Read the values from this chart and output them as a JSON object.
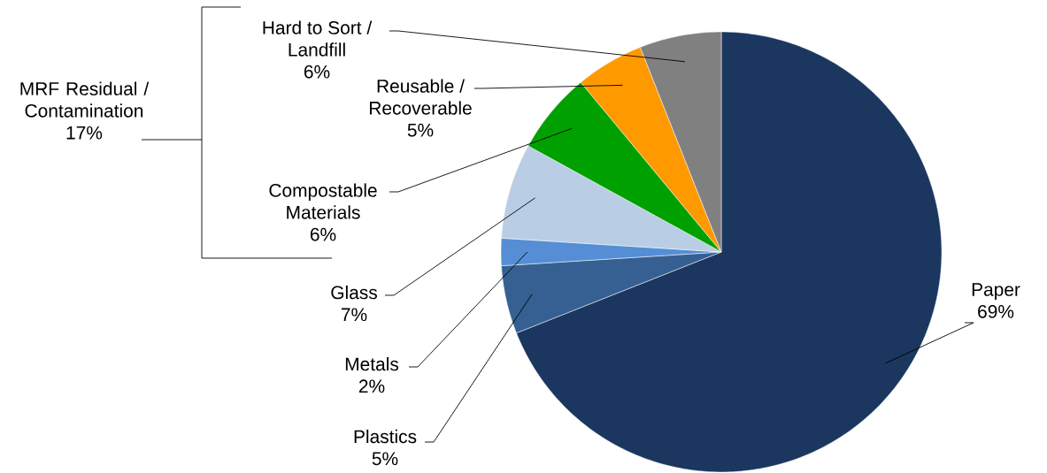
{
  "chart_data": {
    "type": "pie",
    "categories": [
      "Paper",
      "Plastics",
      "Metals",
      "Glass",
      "Compostable Materials",
      "Reusable / Recoverable",
      "Hard to Sort / Landfill"
    ],
    "values": [
      69,
      5,
      2,
      7,
      6,
      5,
      6
    ],
    "value_labels": [
      "69%",
      "5%",
      "2%",
      "7%",
      "6%",
      "5%",
      "6%"
    ],
    "colors": [
      "#1b3760",
      "#366092",
      "#558ed5",
      "#b9cde5",
      "#00a000",
      "#ff9900",
      "#808080"
    ],
    "annotations": [
      "MRF Residual / Contamination 17%"
    ]
  }
}
